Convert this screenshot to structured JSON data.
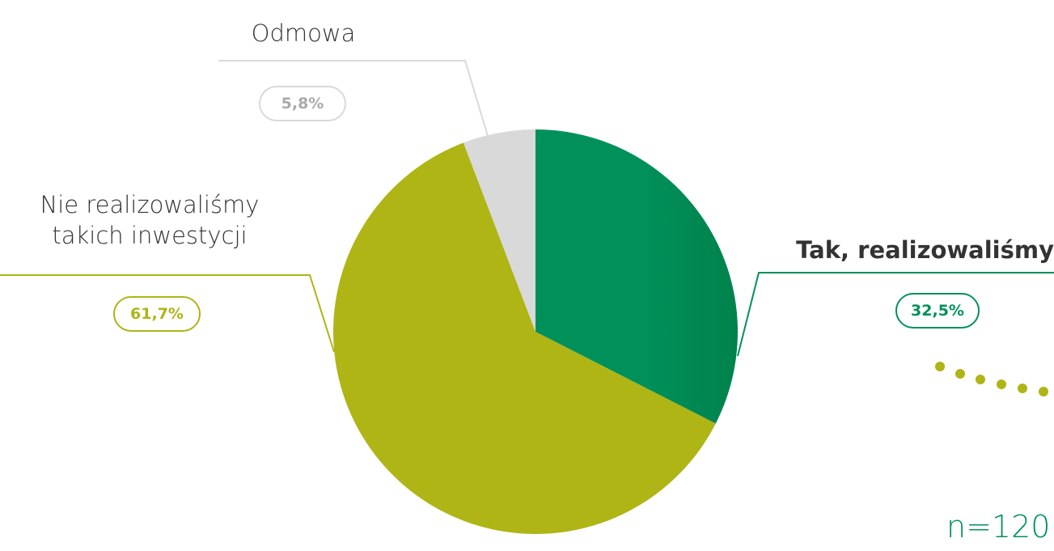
{
  "chart_data": {
    "type": "pie",
    "categories": [
      "Tak, realizowaliśmy",
      "Nie realizowaliśmy takich inwestycji",
      "Odmowa"
    ],
    "values": [
      32.5,
      61.7,
      5.8
    ],
    "value_labels": [
      "32,5%",
      "61,7%",
      "5,8%"
    ],
    "colors": [
      "#00915a",
      "#aeb515",
      "#d9d9d9"
    ],
    "annotation": "n=120"
  }
}
